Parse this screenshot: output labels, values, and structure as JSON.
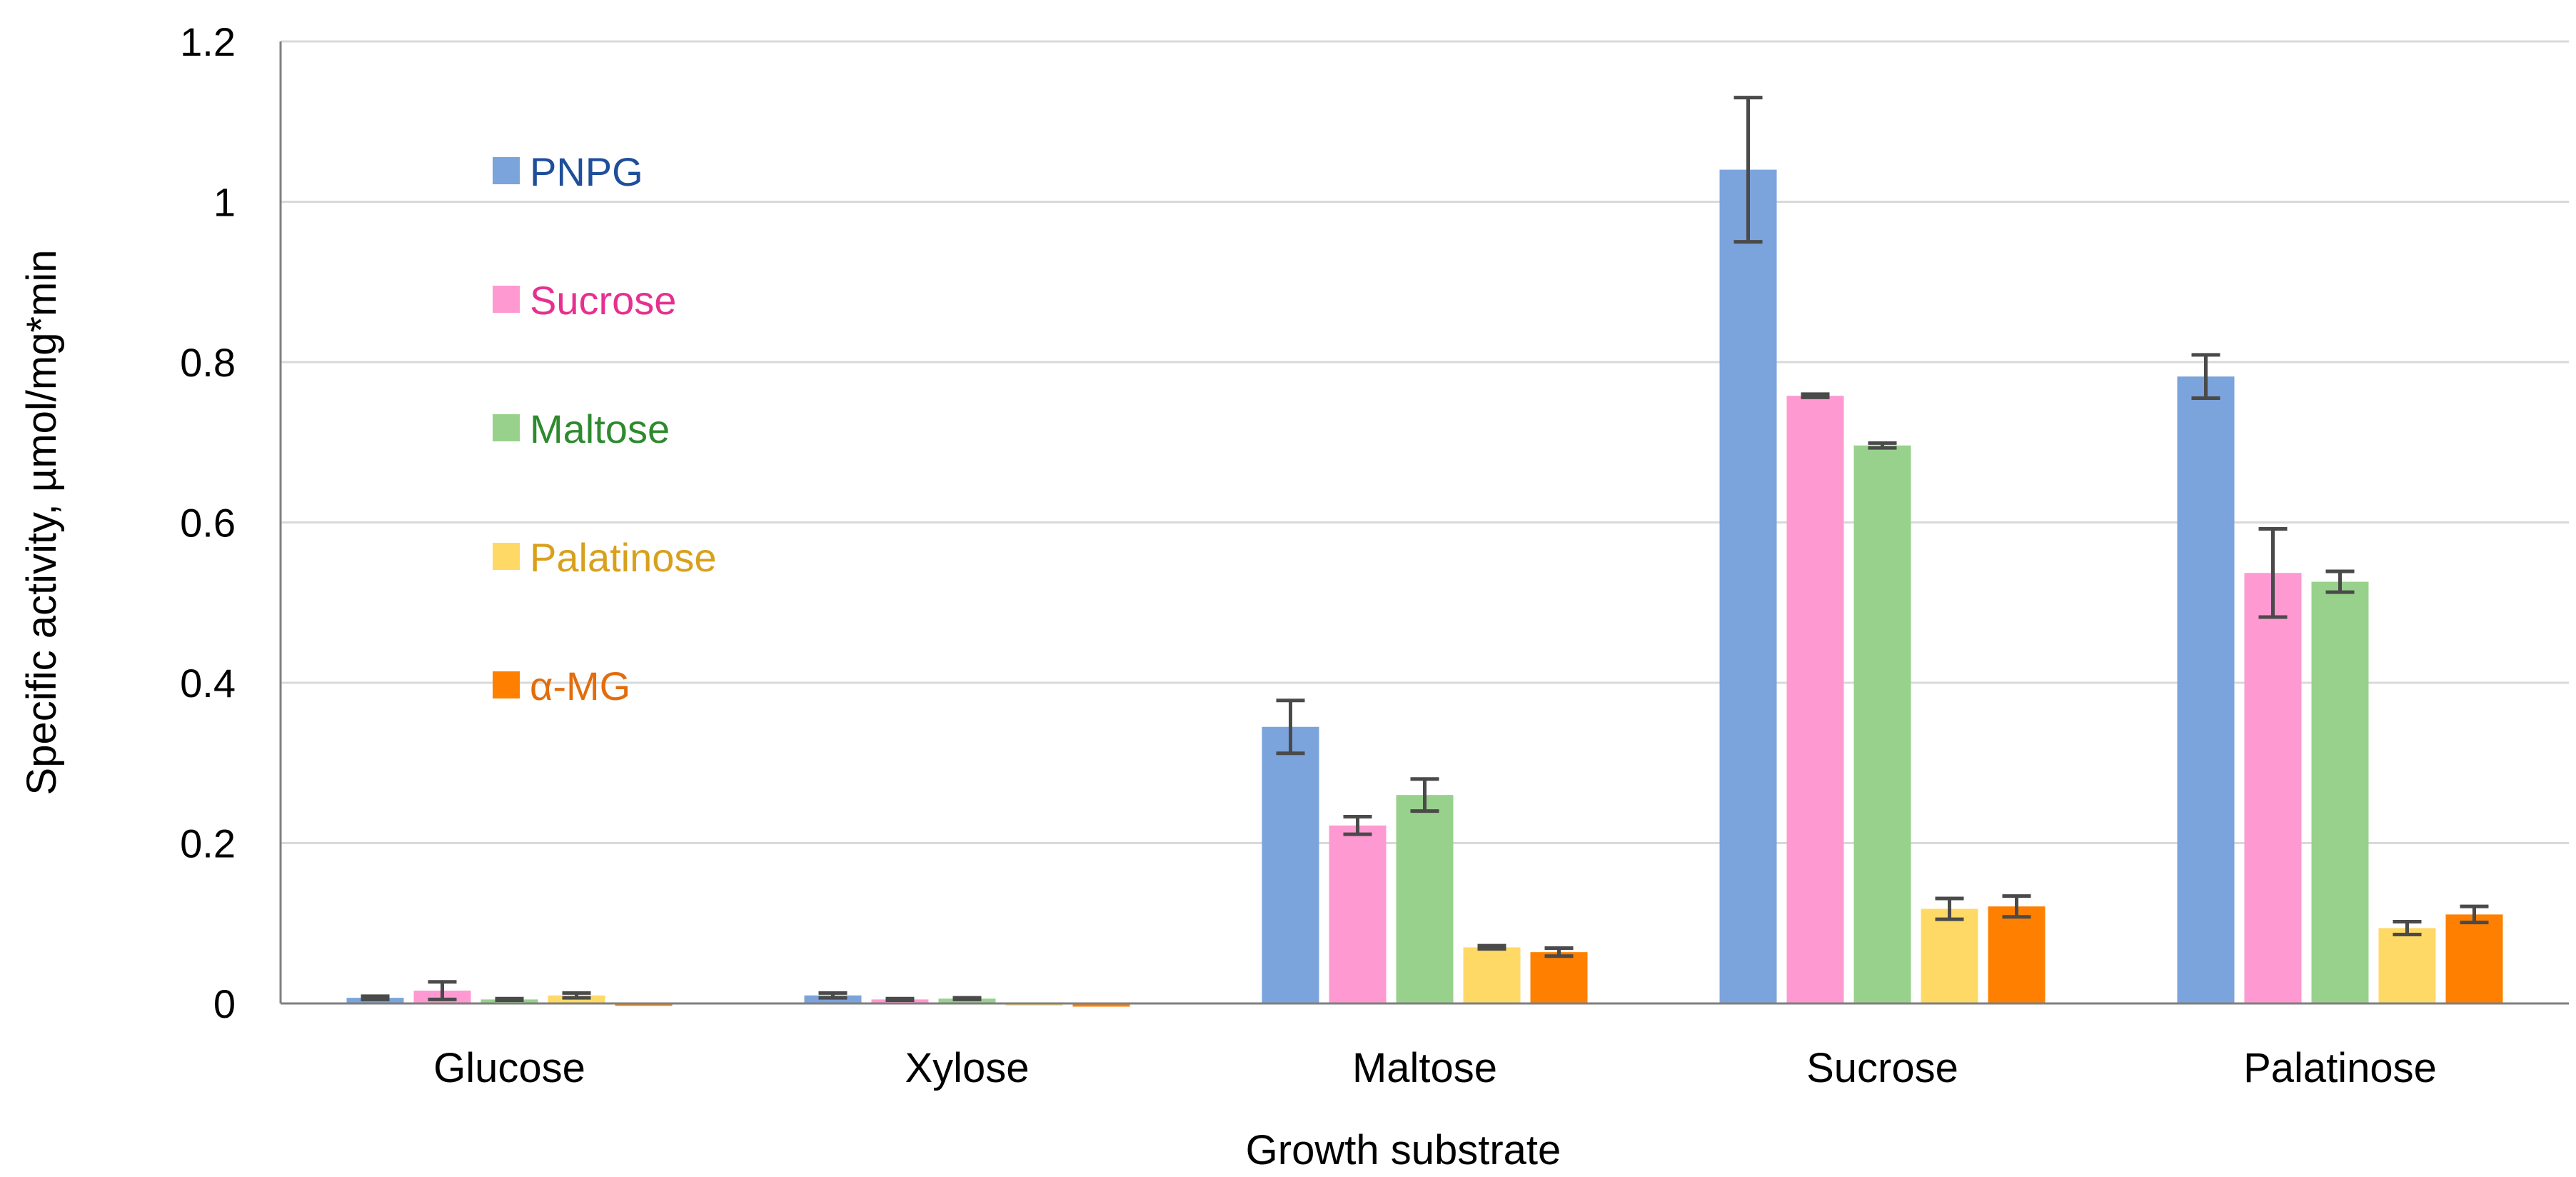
{
  "chart_data": {
    "type": "bar",
    "title": "",
    "xlabel": "Growth substrate",
    "ylabel": "Specific activity, µmol/mg*min",
    "ylim": [
      0,
      1.2
    ],
    "yticks": [
      0,
      0.2,
      0.4,
      0.6,
      0.8,
      1,
      1.2
    ],
    "ytick_labels": [
      "0",
      "0.2",
      "0.4",
      "0.6",
      "0.8",
      "1",
      "1.2"
    ],
    "grid": true,
    "legend_position": "top-left",
    "categories": [
      "Glucose",
      "Xylose",
      "Maltose",
      "Sucrose",
      "Palatinose"
    ],
    "series": [
      {
        "name": "PNPG",
        "color": "#7ba3dc",
        "label_color": "#1f4e9a",
        "values": [
          0.007,
          0.01,
          0.345,
          1.04,
          0.782
        ],
        "errors": [
          0.002,
          0.003,
          0.033,
          0.09,
          0.027
        ]
      },
      {
        "name": "Sucrose",
        "color": "#ff99d2",
        "label_color": "#e6308f",
        "values": [
          0.016,
          0.005,
          0.222,
          0.758,
          0.537
        ],
        "errors": [
          0.011,
          0.001,
          0.011,
          0.002,
          0.055
        ]
      },
      {
        "name": "Maltose",
        "color": "#98d18b",
        "label_color": "#2f8a2f",
        "values": [
          0.005,
          0.006,
          0.26,
          0.696,
          0.526
        ],
        "errors": [
          0.001,
          0.001,
          0.02,
          0.003,
          0.013
        ]
      },
      {
        "name": "Palatinose",
        "color": "#ffd966",
        "label_color": "#d9a01c",
        "values": [
          0.01,
          0.0,
          0.07,
          0.118,
          0.094
        ],
        "errors": [
          0.003,
          0.0,
          0.002,
          0.013,
          0.008
        ]
      },
      {
        "name": "α-MG",
        "color": "#ff8000",
        "label_color": "#e46c0a",
        "values": [
          -0.003,
          -0.004,
          0.064,
          0.121,
          0.111
        ],
        "errors": [
          0.0,
          0.0,
          0.005,
          0.013,
          0.01
        ]
      }
    ]
  }
}
